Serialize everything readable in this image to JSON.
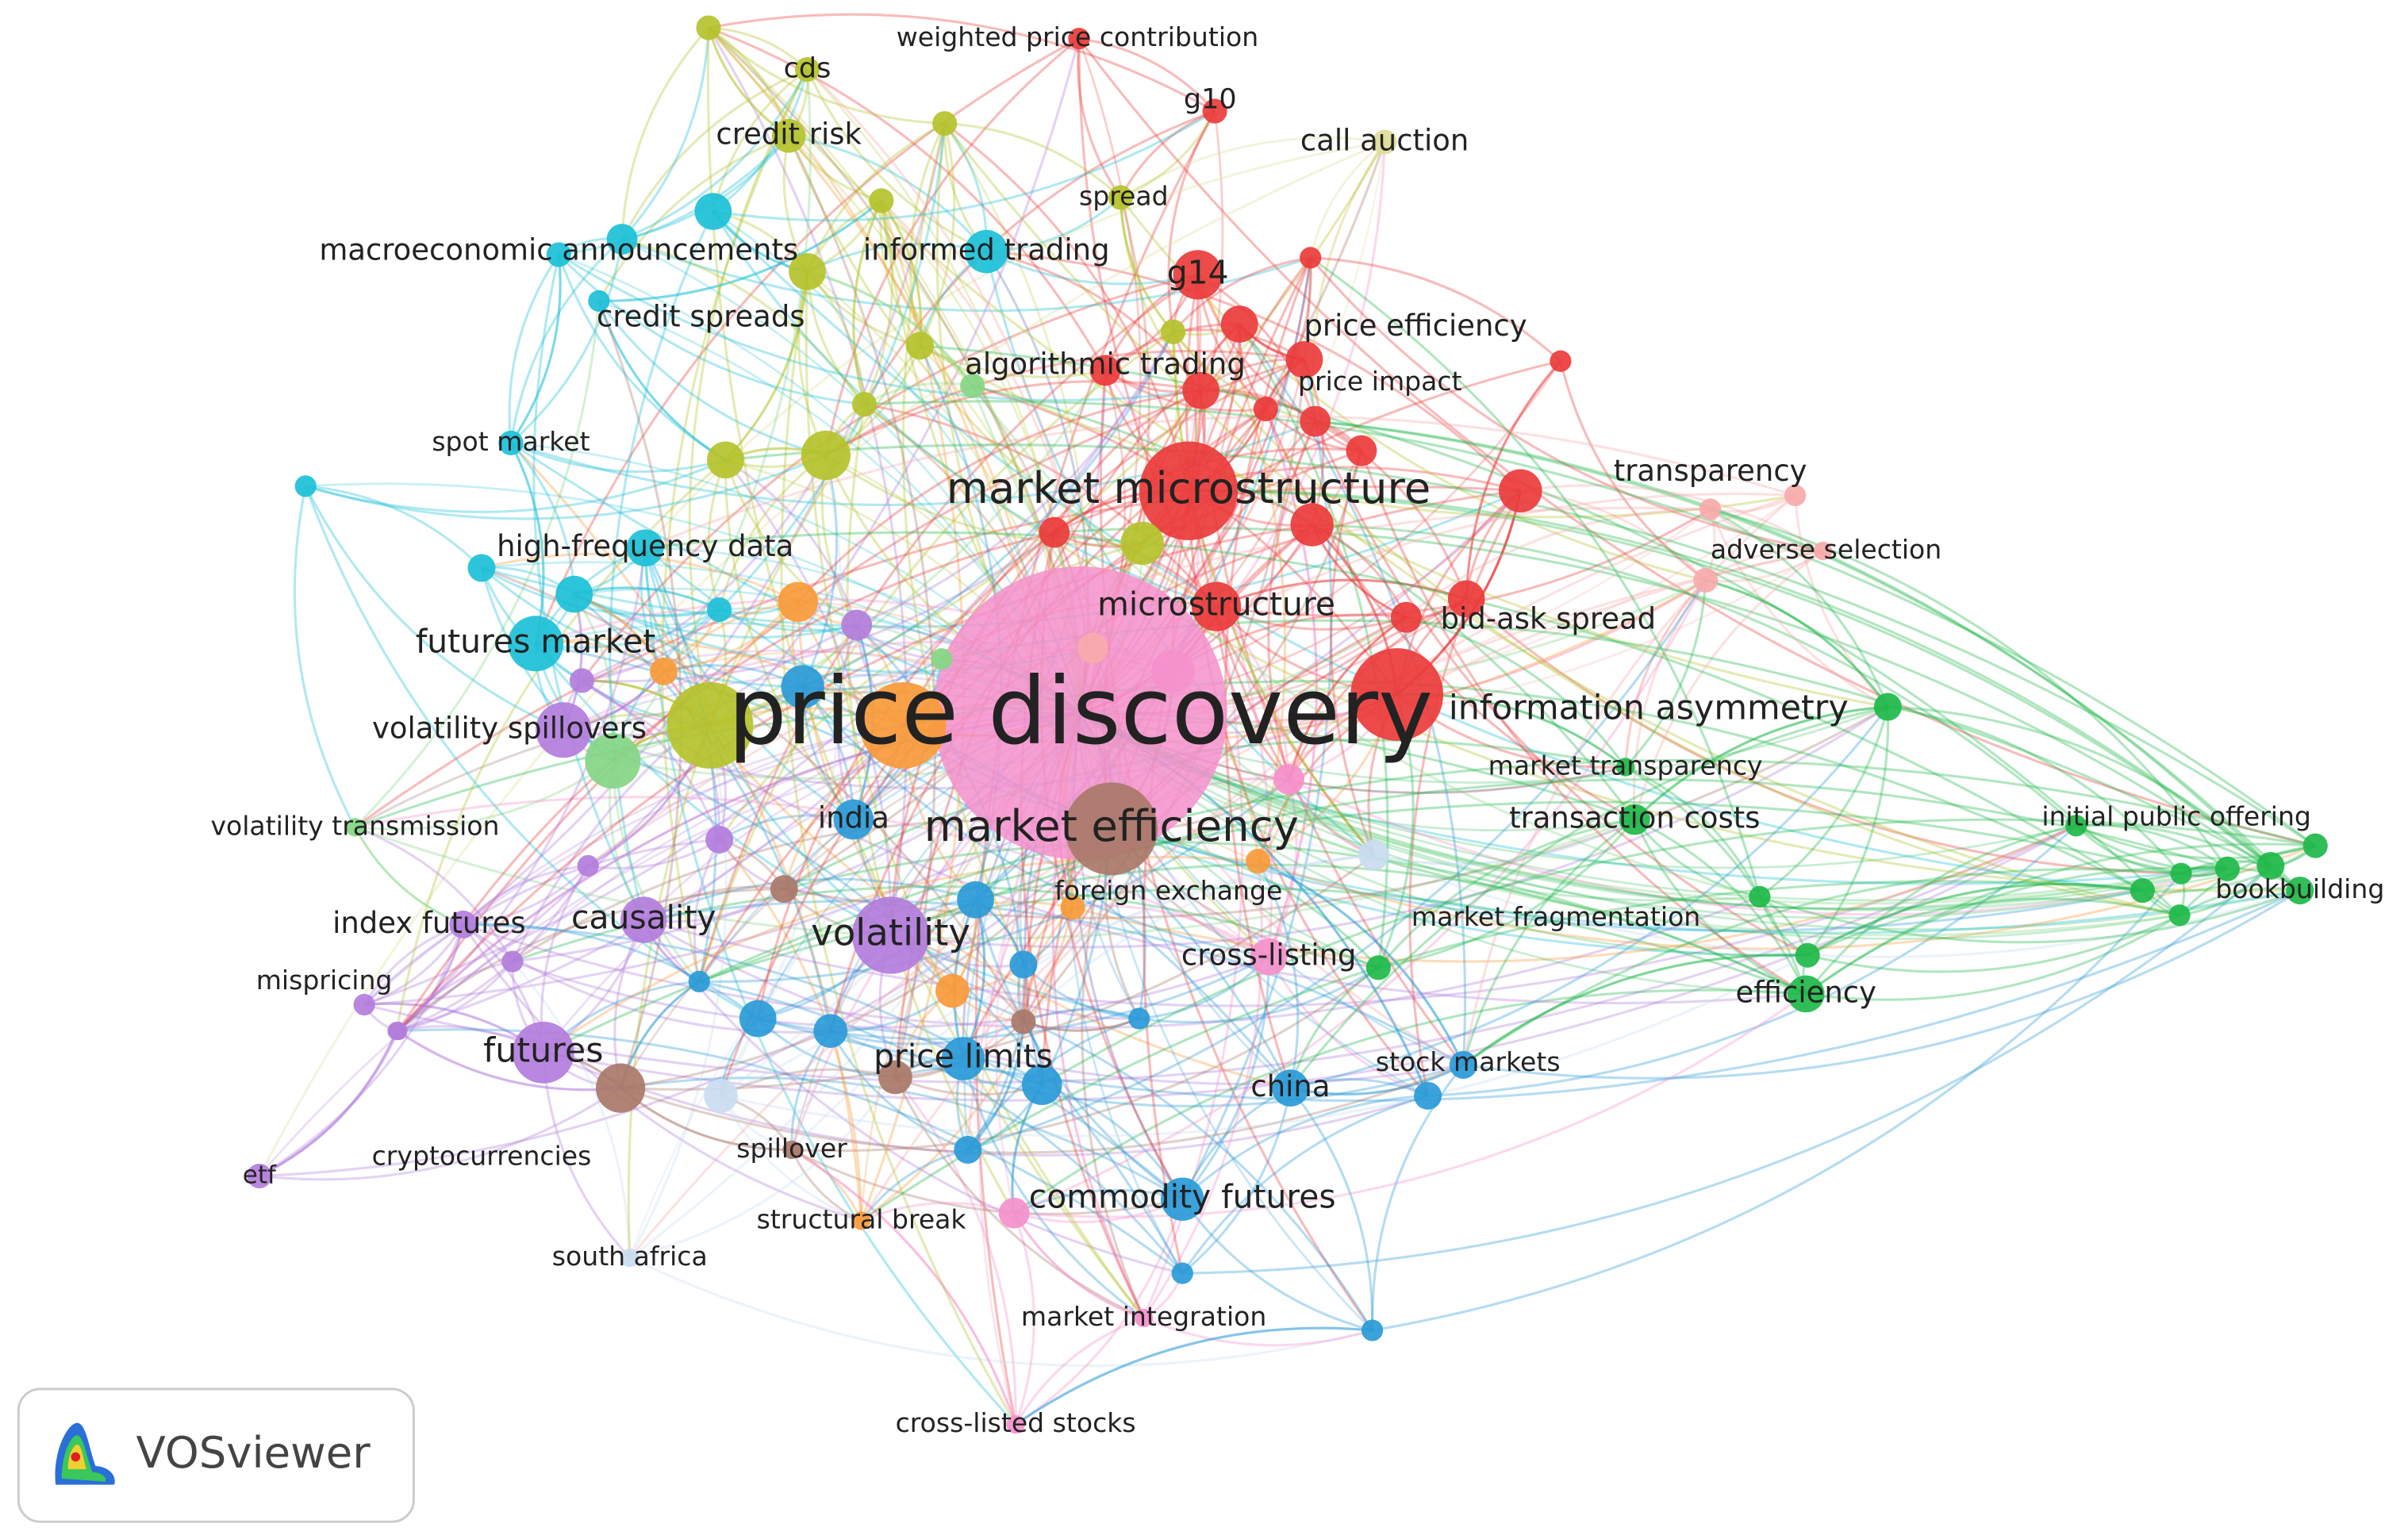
{
  "nodes": [
    {
      "label": "price discovery"
    },
    {
      "label": "market microstructure"
    },
    {
      "label": "market efficiency"
    },
    {
      "label": "information asymmetry"
    },
    {
      "label": "volatility"
    },
    {
      "label": "futures"
    },
    {
      "label": "causality"
    },
    {
      "label": "futures market"
    },
    {
      "label": "volatility spillovers"
    },
    {
      "label": "high-frequency data"
    },
    {
      "label": "microstructure"
    },
    {
      "label": "bid-ask spread"
    },
    {
      "label": "transparency"
    },
    {
      "label": "adverse selection"
    },
    {
      "label": "price efficiency"
    },
    {
      "label": "price impact"
    },
    {
      "label": "algorithmic trading"
    },
    {
      "label": "g14"
    },
    {
      "label": "g10"
    },
    {
      "label": "weighted price contribution"
    },
    {
      "label": "call auction"
    },
    {
      "label": "spread"
    },
    {
      "label": "cds"
    },
    {
      "label": "credit risk"
    },
    {
      "label": "informed trading"
    },
    {
      "label": "macroeconomic announcements"
    },
    {
      "label": "credit spreads"
    },
    {
      "label": "spot market"
    },
    {
      "label": "volatility transmission"
    },
    {
      "label": "index futures"
    },
    {
      "label": "mispricing"
    },
    {
      "label": "cryptocurrencies"
    },
    {
      "label": "etf"
    },
    {
      "label": "india"
    },
    {
      "label": "foreign exchange"
    },
    {
      "label": "cross-listing"
    },
    {
      "label": "market fragmentation"
    },
    {
      "label": "transaction costs"
    },
    {
      "label": "market transparency"
    },
    {
      "label": "initial public offering"
    },
    {
      "label": "bookbuilding"
    },
    {
      "label": "efficiency"
    },
    {
      "label": "price limits"
    },
    {
      "label": "china"
    },
    {
      "label": "stock markets"
    },
    {
      "label": "commodity futures"
    },
    {
      "label": "spillover"
    },
    {
      "label": "structural break"
    },
    {
      "label": "south africa"
    },
    {
      "label": "market integration"
    },
    {
      "label": "cross-listed stocks"
    }
  ],
  "logo": {
    "text": "VOSviewer"
  }
}
